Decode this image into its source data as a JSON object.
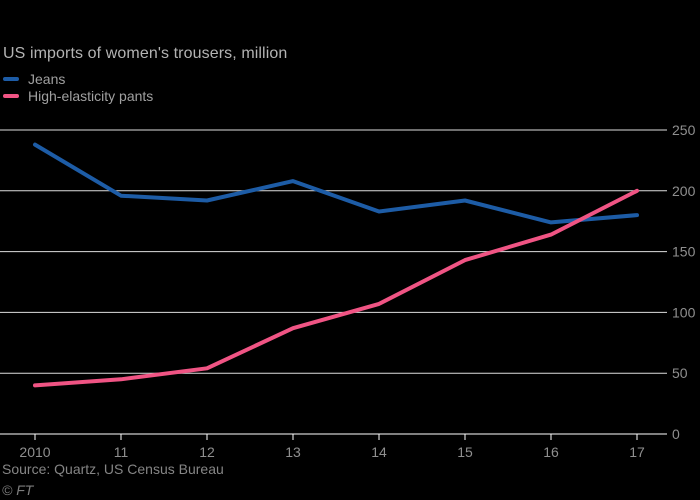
{
  "title": "US imports of women's trousers, million",
  "legend": {
    "items": [
      {
        "label": "Jeans",
        "color": "#1d5ca6"
      },
      {
        "label": "High-elasticity pants",
        "color": "#f05484"
      }
    ]
  },
  "footer": {
    "source": "Source: Quartz, US Census Bureau",
    "copyright": "© FT"
  },
  "colors": {
    "background": "#000000",
    "jeans_line": "#1d5ca6",
    "pants_line": "#f05484",
    "gridline": "#dedede",
    "axis_line": "#ffffff",
    "tick_label": "#8f8f8f",
    "title_text": "#b3b3b3",
    "legend_text": "#a0a0a0",
    "source_text": "#858585"
  },
  "chart_data": {
    "type": "line",
    "title": "US imports of women's trousers, million",
    "x": [
      2010,
      2011,
      2012,
      2013,
      2014,
      2015,
      2016,
      2017
    ],
    "x_tick_labels": [
      "2010",
      "11",
      "12",
      "13",
      "14",
      "15",
      "16",
      "17"
    ],
    "series": [
      {
        "name": "Jeans",
        "color": "#1d5ca6",
        "values": [
          238,
          196,
          192,
          208,
          183,
          192,
          174,
          180
        ]
      },
      {
        "name": "High-elasticity pants",
        "color": "#f05484",
        "values": [
          40,
          45,
          54,
          87,
          107,
          143,
          164,
          200
        ]
      }
    ],
    "xlabel": "",
    "ylabel": "",
    "ylim": [
      0,
      250
    ],
    "yticks": [
      0,
      50,
      100,
      150,
      200,
      250
    ],
    "y_axis_side": "right",
    "grid": true,
    "legend_position": "top-left"
  }
}
